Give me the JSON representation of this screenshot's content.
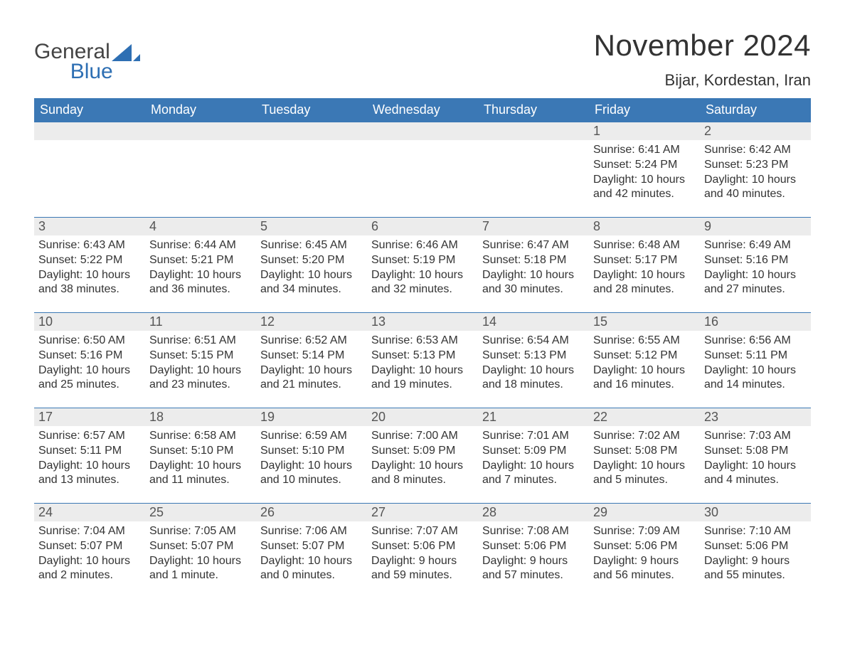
{
  "brand": {
    "text_general": "General",
    "text_blue": "Blue",
    "logo_color": "#2e6fb3",
    "logo_text_color": "#444444"
  },
  "header": {
    "month_title": "November 2024",
    "location": "Bijar, Kordestan, Iran"
  },
  "style": {
    "header_bg": "#3b78b5",
    "header_fg": "#ffffff",
    "daynum_bg": "#ececec",
    "daynum_border": "#3b78b5",
    "body_bg": "#ffffff",
    "text_color": "#333333",
    "font_family": "Arial, Helvetica, sans-serif",
    "month_title_fontsize": 42,
    "location_fontsize": 22,
    "weekday_fontsize": 18,
    "daynum_fontsize": 18,
    "body_fontsize": 16,
    "col_count": 7,
    "row_count": 5
  },
  "weekdays": [
    "Sunday",
    "Monday",
    "Tuesday",
    "Wednesday",
    "Thursday",
    "Friday",
    "Saturday"
  ],
  "weeks": [
    [
      {
        "n": "",
        "sunrise": "",
        "sunset": "",
        "daylight": ""
      },
      {
        "n": "",
        "sunrise": "",
        "sunset": "",
        "daylight": ""
      },
      {
        "n": "",
        "sunrise": "",
        "sunset": "",
        "daylight": ""
      },
      {
        "n": "",
        "sunrise": "",
        "sunset": "",
        "daylight": ""
      },
      {
        "n": "",
        "sunrise": "",
        "sunset": "",
        "daylight": ""
      },
      {
        "n": "1",
        "sunrise": "Sunrise: 6:41 AM",
        "sunset": "Sunset: 5:24 PM",
        "daylight": "Daylight: 10 hours and 42 minutes."
      },
      {
        "n": "2",
        "sunrise": "Sunrise: 6:42 AM",
        "sunset": "Sunset: 5:23 PM",
        "daylight": "Daylight: 10 hours and 40 minutes."
      }
    ],
    [
      {
        "n": "3",
        "sunrise": "Sunrise: 6:43 AM",
        "sunset": "Sunset: 5:22 PM",
        "daylight": "Daylight: 10 hours and 38 minutes."
      },
      {
        "n": "4",
        "sunrise": "Sunrise: 6:44 AM",
        "sunset": "Sunset: 5:21 PM",
        "daylight": "Daylight: 10 hours and 36 minutes."
      },
      {
        "n": "5",
        "sunrise": "Sunrise: 6:45 AM",
        "sunset": "Sunset: 5:20 PM",
        "daylight": "Daylight: 10 hours and 34 minutes."
      },
      {
        "n": "6",
        "sunrise": "Sunrise: 6:46 AM",
        "sunset": "Sunset: 5:19 PM",
        "daylight": "Daylight: 10 hours and 32 minutes."
      },
      {
        "n": "7",
        "sunrise": "Sunrise: 6:47 AM",
        "sunset": "Sunset: 5:18 PM",
        "daylight": "Daylight: 10 hours and 30 minutes."
      },
      {
        "n": "8",
        "sunrise": "Sunrise: 6:48 AM",
        "sunset": "Sunset: 5:17 PM",
        "daylight": "Daylight: 10 hours and 28 minutes."
      },
      {
        "n": "9",
        "sunrise": "Sunrise: 6:49 AM",
        "sunset": "Sunset: 5:16 PM",
        "daylight": "Daylight: 10 hours and 27 minutes."
      }
    ],
    [
      {
        "n": "10",
        "sunrise": "Sunrise: 6:50 AM",
        "sunset": "Sunset: 5:16 PM",
        "daylight": "Daylight: 10 hours and 25 minutes."
      },
      {
        "n": "11",
        "sunrise": "Sunrise: 6:51 AM",
        "sunset": "Sunset: 5:15 PM",
        "daylight": "Daylight: 10 hours and 23 minutes."
      },
      {
        "n": "12",
        "sunrise": "Sunrise: 6:52 AM",
        "sunset": "Sunset: 5:14 PM",
        "daylight": "Daylight: 10 hours and 21 minutes."
      },
      {
        "n": "13",
        "sunrise": "Sunrise: 6:53 AM",
        "sunset": "Sunset: 5:13 PM",
        "daylight": "Daylight: 10 hours and 19 minutes."
      },
      {
        "n": "14",
        "sunrise": "Sunrise: 6:54 AM",
        "sunset": "Sunset: 5:13 PM",
        "daylight": "Daylight: 10 hours and 18 minutes."
      },
      {
        "n": "15",
        "sunrise": "Sunrise: 6:55 AM",
        "sunset": "Sunset: 5:12 PM",
        "daylight": "Daylight: 10 hours and 16 minutes."
      },
      {
        "n": "16",
        "sunrise": "Sunrise: 6:56 AM",
        "sunset": "Sunset: 5:11 PM",
        "daylight": "Daylight: 10 hours and 14 minutes."
      }
    ],
    [
      {
        "n": "17",
        "sunrise": "Sunrise: 6:57 AM",
        "sunset": "Sunset: 5:11 PM",
        "daylight": "Daylight: 10 hours and 13 minutes."
      },
      {
        "n": "18",
        "sunrise": "Sunrise: 6:58 AM",
        "sunset": "Sunset: 5:10 PM",
        "daylight": "Daylight: 10 hours and 11 minutes."
      },
      {
        "n": "19",
        "sunrise": "Sunrise: 6:59 AM",
        "sunset": "Sunset: 5:10 PM",
        "daylight": "Daylight: 10 hours and 10 minutes."
      },
      {
        "n": "20",
        "sunrise": "Sunrise: 7:00 AM",
        "sunset": "Sunset: 5:09 PM",
        "daylight": "Daylight: 10 hours and 8 minutes."
      },
      {
        "n": "21",
        "sunrise": "Sunrise: 7:01 AM",
        "sunset": "Sunset: 5:09 PM",
        "daylight": "Daylight: 10 hours and 7 minutes."
      },
      {
        "n": "22",
        "sunrise": "Sunrise: 7:02 AM",
        "sunset": "Sunset: 5:08 PM",
        "daylight": "Daylight: 10 hours and 5 minutes."
      },
      {
        "n": "23",
        "sunrise": "Sunrise: 7:03 AM",
        "sunset": "Sunset: 5:08 PM",
        "daylight": "Daylight: 10 hours and 4 minutes."
      }
    ],
    [
      {
        "n": "24",
        "sunrise": "Sunrise: 7:04 AM",
        "sunset": "Sunset: 5:07 PM",
        "daylight": "Daylight: 10 hours and 2 minutes."
      },
      {
        "n": "25",
        "sunrise": "Sunrise: 7:05 AM",
        "sunset": "Sunset: 5:07 PM",
        "daylight": "Daylight: 10 hours and 1 minute."
      },
      {
        "n": "26",
        "sunrise": "Sunrise: 7:06 AM",
        "sunset": "Sunset: 5:07 PM",
        "daylight": "Daylight: 10 hours and 0 minutes."
      },
      {
        "n": "27",
        "sunrise": "Sunrise: 7:07 AM",
        "sunset": "Sunset: 5:06 PM",
        "daylight": "Daylight: 9 hours and 59 minutes."
      },
      {
        "n": "28",
        "sunrise": "Sunrise: 7:08 AM",
        "sunset": "Sunset: 5:06 PM",
        "daylight": "Daylight: 9 hours and 57 minutes."
      },
      {
        "n": "29",
        "sunrise": "Sunrise: 7:09 AM",
        "sunset": "Sunset: 5:06 PM",
        "daylight": "Daylight: 9 hours and 56 minutes."
      },
      {
        "n": "30",
        "sunrise": "Sunrise: 7:10 AM",
        "sunset": "Sunset: 5:06 PM",
        "daylight": "Daylight: 9 hours and 55 minutes."
      }
    ]
  ]
}
